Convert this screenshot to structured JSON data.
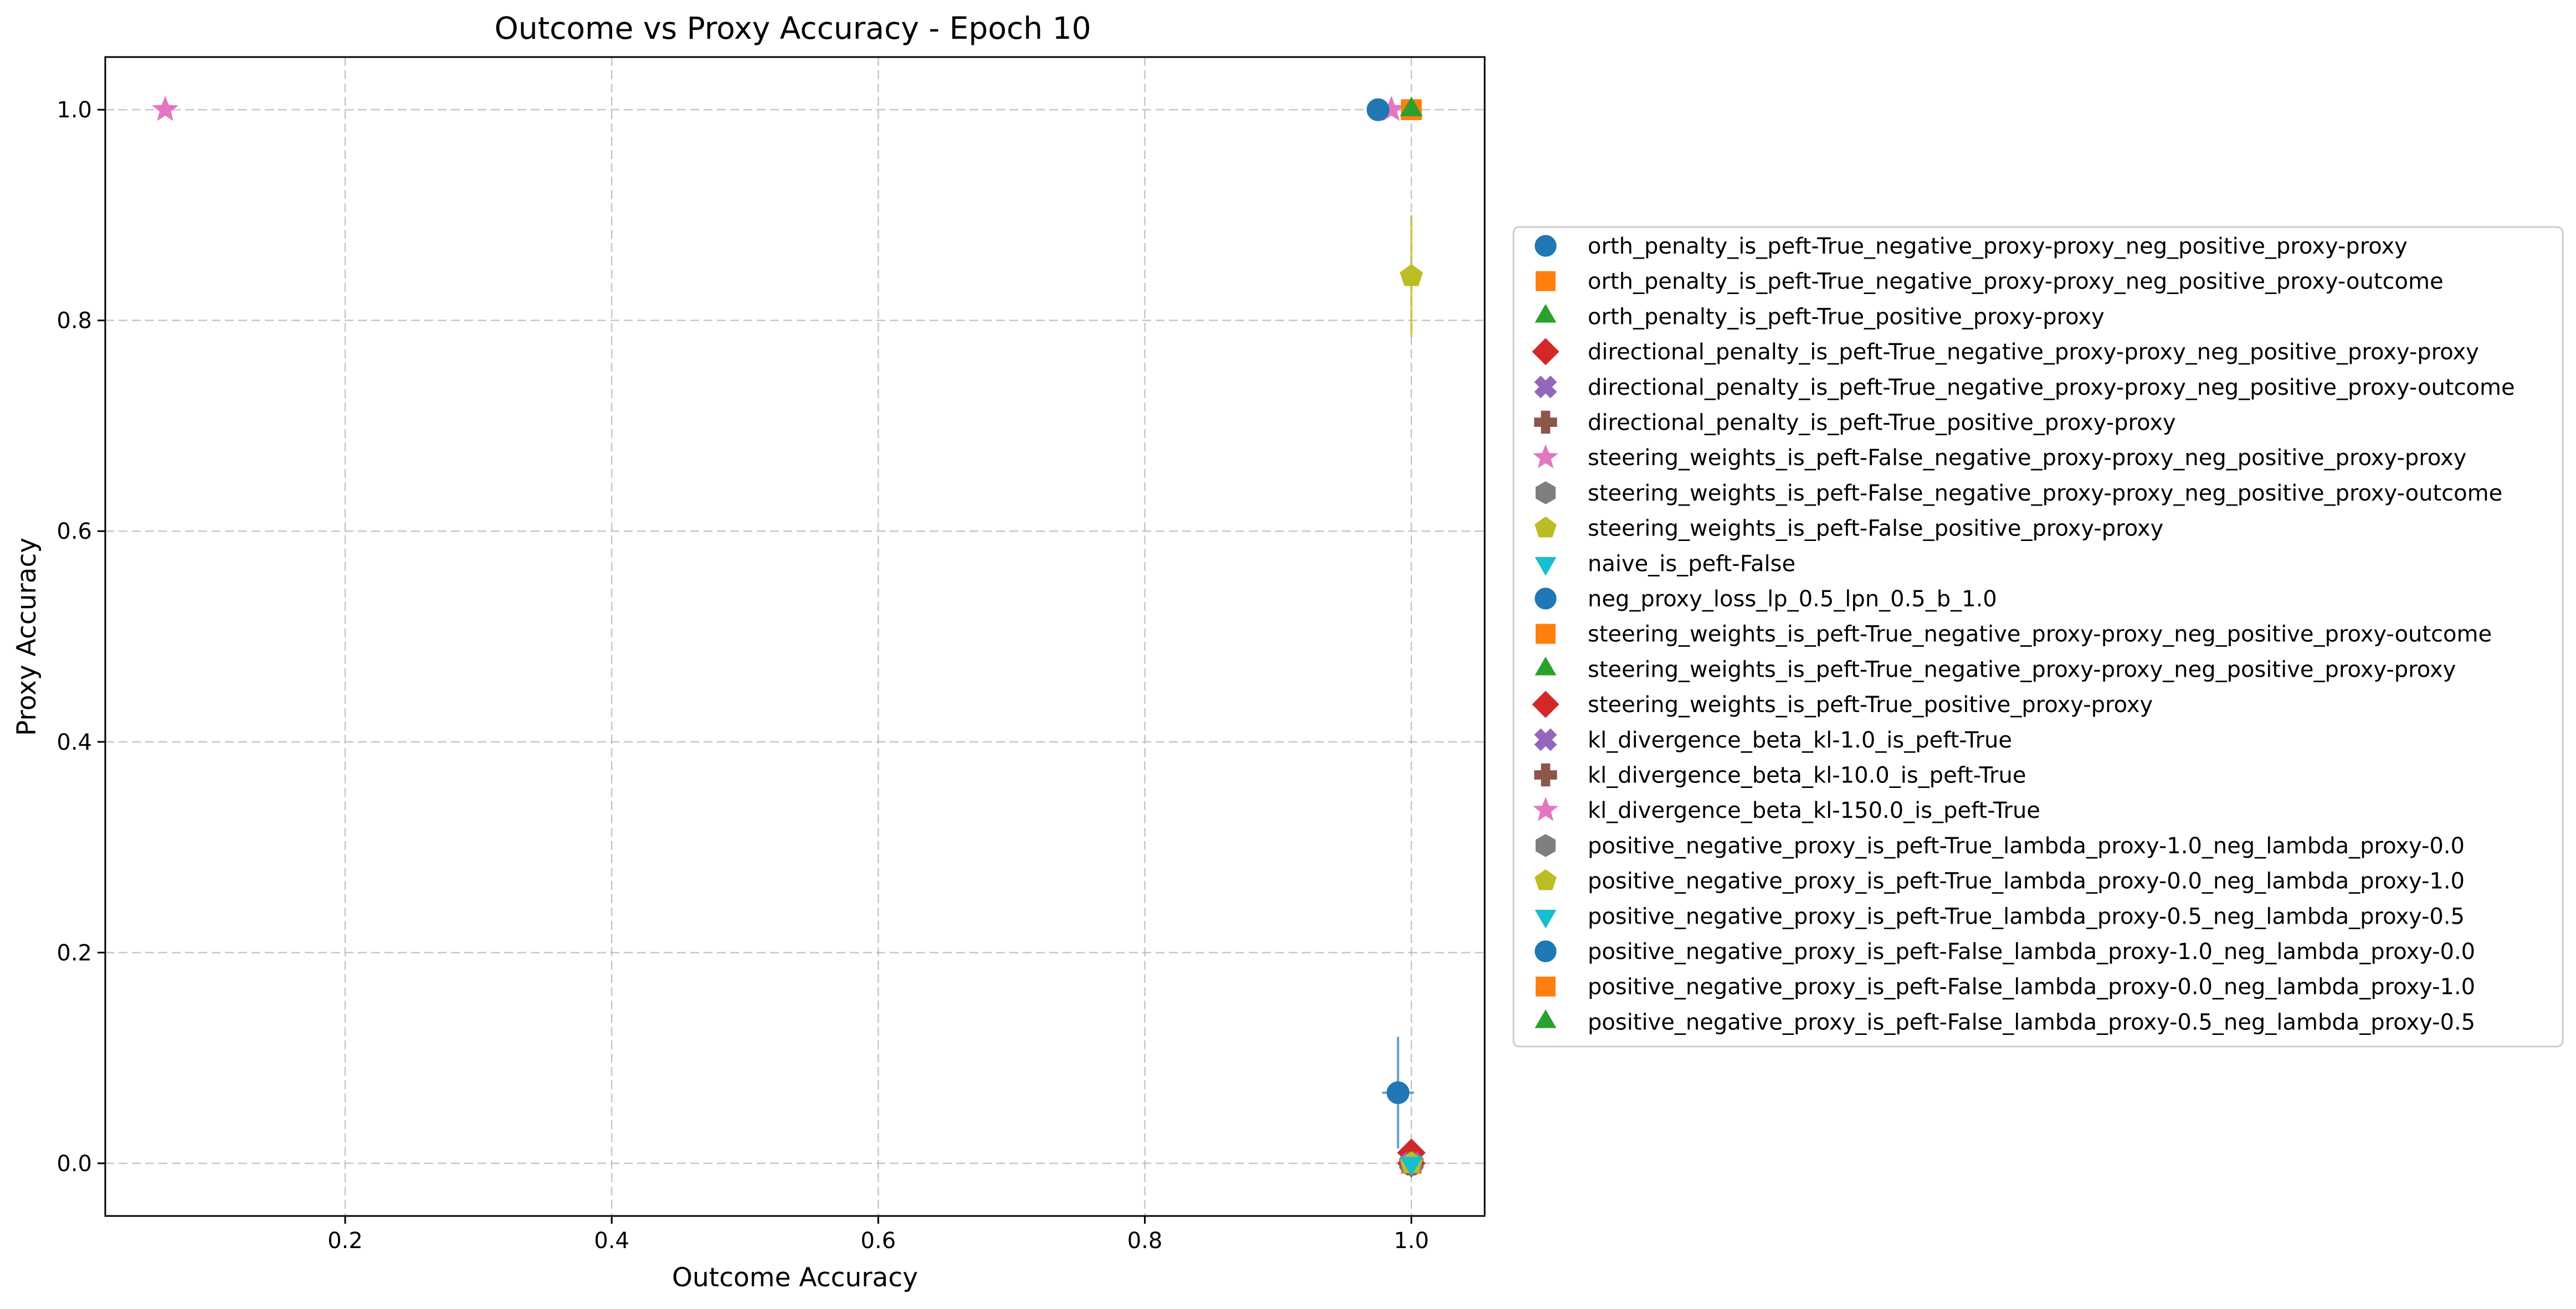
{
  "chart_data": {
    "type": "scatter",
    "title": "Outcome vs Proxy Accuracy - Epoch 10",
    "xlabel": "Outcome Accuracy",
    "ylabel": "Proxy Accuracy",
    "xlim": [
      0.02,
      1.055
    ],
    "ylim": [
      -0.05,
      1.05
    ],
    "xticks": [
      0.2,
      0.4,
      0.6,
      0.8,
      1.0
    ],
    "xtick_labels": [
      "0.2",
      "0.4",
      "0.6",
      "0.8",
      "1.0"
    ],
    "yticks": [
      0.0,
      0.2,
      0.4,
      0.6,
      0.8,
      1.0
    ],
    "ytick_labels": [
      "0.0",
      "0.2",
      "0.4",
      "0.6",
      "0.8",
      "1.0"
    ],
    "grid": true,
    "legend_position": "outside right",
    "series": [
      {
        "name": "orth_penalty_is_peft-True_negative_proxy-proxy_neg_positive_proxy-proxy",
        "marker": "circle",
        "color": "#1f77b4",
        "x": 0.975,
        "y": 1.0
      },
      {
        "name": "orth_penalty_is_peft-True_negative_proxy-proxy_neg_positive_proxy-outcome",
        "marker": "square",
        "color": "#ff7f0e",
        "x": 1.0,
        "y": 1.0
      },
      {
        "name": "orth_penalty_is_peft-True_positive_proxy-proxy",
        "marker": "triangle",
        "color": "#2ca02c",
        "x": 1.0,
        "y": 1.0
      },
      {
        "name": "directional_penalty_is_peft-True_negative_proxy-proxy_neg_positive_proxy-proxy",
        "marker": "diamond",
        "color": "#d62728",
        "x": 1.0,
        "y": 0.0
      },
      {
        "name": "directional_penalty_is_peft-True_negative_proxy-proxy_neg_positive_proxy-outcome",
        "marker": "x",
        "color": "#9467bd",
        "x": 1.0,
        "y": 0.0
      },
      {
        "name": "directional_penalty_is_peft-True_positive_proxy-proxy",
        "marker": "plus",
        "color": "#8c564b",
        "x": 1.0,
        "y": 0.0
      },
      {
        "name": "steering_weights_is_peft-False_negative_proxy-proxy_neg_positive_proxy-proxy",
        "marker": "star",
        "color": "#e377c2",
        "x": 0.065,
        "y": 1.0
      },
      {
        "name": "steering_weights_is_peft-False_negative_proxy-proxy_neg_positive_proxy-outcome",
        "marker": "hexagon",
        "color": "#7f7f7f",
        "x": 1.0,
        "y": 0.0
      },
      {
        "name": "steering_weights_is_peft-False_positive_proxy-proxy",
        "marker": "pentagon",
        "color": "#bcbd22",
        "x": 1.0,
        "y": 0.842,
        "yerr": 0.058
      },
      {
        "name": "naive_is_peft-False",
        "marker": "triangle-down",
        "color": "#17becf",
        "x": 1.0,
        "y": 0.0
      },
      {
        "name": "neg_proxy_loss_lp_0.5_lpn_0.5_b_1.0",
        "marker": "circle",
        "color": "#1f77b4",
        "x": 0.99,
        "y": 0.067,
        "yerr": 0.053,
        "xerr": 0.012
      },
      {
        "name": "steering_weights_is_peft-True_negative_proxy-proxy_neg_positive_proxy-outcome",
        "marker": "square",
        "color": "#ff7f0e",
        "x": 1.0,
        "y": 0.0
      },
      {
        "name": "steering_weights_is_peft-True_negative_proxy-proxy_neg_positive_proxy-proxy",
        "marker": "triangle",
        "color": "#2ca02c",
        "x": 1.0,
        "y": 0.0
      },
      {
        "name": "steering_weights_is_peft-True_positive_proxy-proxy",
        "marker": "diamond",
        "color": "#d62728",
        "x": 1.0,
        "y": 0.01
      },
      {
        "name": "kl_divergence_beta_kl-1.0_is_peft-True",
        "marker": "x",
        "color": "#9467bd",
        "x": 1.0,
        "y": 0.0
      },
      {
        "name": "kl_divergence_beta_kl-10.0_is_peft-True",
        "marker": "plus",
        "color": "#8c564b",
        "x": 1.0,
        "y": 0.0
      },
      {
        "name": "kl_divergence_beta_kl-150.0_is_peft-True",
        "marker": "star",
        "color": "#e377c2",
        "x": 0.985,
        "y": 1.0
      },
      {
        "name": "positive_negative_proxy_is_peft-True_lambda_proxy-1.0_neg_lambda_proxy-0.0",
        "marker": "hexagon",
        "color": "#7f7f7f",
        "x": 1.0,
        "y": 0.0
      },
      {
        "name": "positive_negative_proxy_is_peft-True_lambda_proxy-0.0_neg_lambda_proxy-1.0",
        "marker": "pentagon",
        "color": "#bcbd22",
        "x": 1.0,
        "y": 0.0
      },
      {
        "name": "positive_negative_proxy_is_peft-True_lambda_proxy-0.5_neg_lambda_proxy-0.5",
        "marker": "triangle-down",
        "color": "#17becf",
        "x": 1.0,
        "y": 0.0
      },
      {
        "name": "positive_negative_proxy_is_peft-False_lambda_proxy-1.0_neg_lambda_proxy-0.0",
        "marker": "circle",
        "color": "#1f77b4",
        "x": 0.975,
        "y": 1.0
      },
      {
        "name": "positive_negative_proxy_is_peft-False_lambda_proxy-0.0_neg_lambda_proxy-1.0",
        "marker": "square",
        "color": "#ff7f0e",
        "x": 1.0,
        "y": 1.0
      },
      {
        "name": "positive_negative_proxy_is_peft-False_lambda_proxy-0.5_neg_lambda_proxy-0.5",
        "marker": "triangle",
        "color": "#2ca02c",
        "x": 1.0,
        "y": 1.0
      }
    ]
  }
}
